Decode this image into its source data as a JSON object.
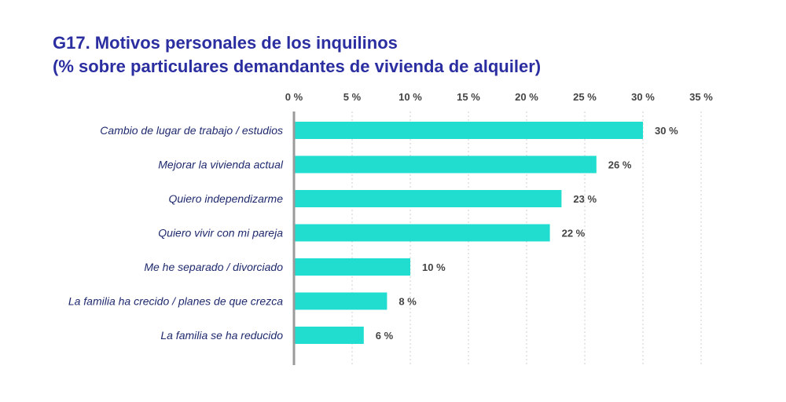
{
  "title": {
    "line1": "G17. Motivos personales de los inquilinos",
    "line2": "(% sobre particulares demandantes de vivienda de alquiler)"
  },
  "colors": {
    "bar": "#21ddd0",
    "title": "#2b2ea0",
    "category_text": "#1f2a6e",
    "tick_text": "#444444",
    "gridline": "#cfcfcf",
    "axis": "#9a9a9a"
  },
  "chart_data": {
    "type": "bar",
    "orientation": "horizontal",
    "title": "G17. Motivos personales de los inquilinos (% sobre particulares demandantes de vivienda de alquiler)",
    "categories": [
      "Cambio de lugar de trabajo / estudios",
      "Mejorar la vivienda actual",
      "Quiero independizarme",
      "Quiero vivir con mi pareja",
      "Me he separado / divorciado",
      "La familia ha crecido / planes de que crezca",
      "La familia se ha reducido"
    ],
    "values": [
      30,
      26,
      23,
      22,
      10,
      8,
      6
    ],
    "data_labels": [
      "30 %",
      "26 %",
      "23 %",
      "22 %",
      "10 %",
      "8 %",
      "6 %"
    ],
    "xlim": [
      0,
      35
    ],
    "xticks": [
      0,
      5,
      10,
      15,
      20,
      25,
      30,
      35
    ],
    "xtick_labels": [
      "0 %",
      "5 %",
      "10 %",
      "15 %",
      "20 %",
      "25 %",
      "30 %",
      "35 %"
    ],
    "x_axis_position": "top",
    "grid": true
  }
}
